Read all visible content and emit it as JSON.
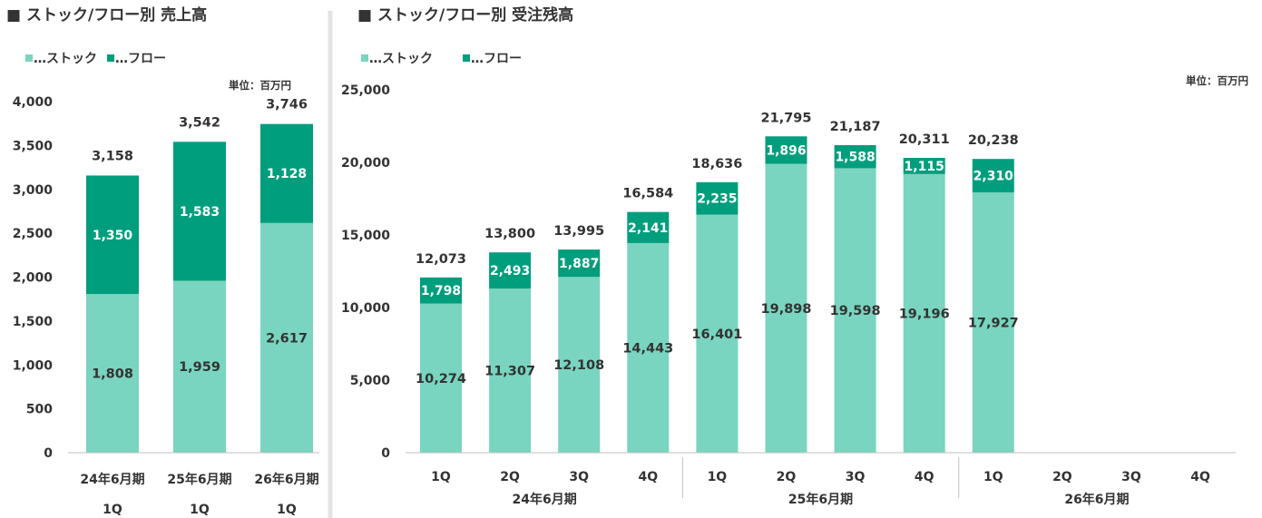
{
  "colors": {
    "stock": "#79d5bf",
    "flow": "#009e7d",
    "axis": "#bfbfbf",
    "text": "#333333",
    "divider": "#e3e3e3"
  },
  "chart_data": [
    {
      "type": "bar",
      "stacked": true,
      "title": "■ ストック/フロー別 売上高",
      "unit_label": "単位：百万円",
      "legend": [
        {
          "key": "stock",
          "label": "…ストック"
        },
        {
          "key": "flow",
          "label": "…フロー"
        }
      ],
      "categories": [
        {
          "top": "24年6月期",
          "bottom": "1Q"
        },
        {
          "top": "25年6月期",
          "bottom": "1Q"
        },
        {
          "top": "26年6月期",
          "bottom": "1Q"
        }
      ],
      "series": [
        {
          "name": "…ストック",
          "key": "stock",
          "values": [
            1808,
            1959,
            2617
          ],
          "labels": [
            "1,808",
            "1,959",
            "2,617"
          ]
        },
        {
          "name": "…フロー",
          "key": "flow",
          "values": [
            1350,
            1583,
            1128
          ],
          "labels": [
            "1,350",
            "1,583",
            "1,128"
          ]
        }
      ],
      "totals": [
        3158,
        3542,
        3746
      ],
      "total_labels": [
        "3,158",
        "3,542",
        "3,746"
      ],
      "ylim": [
        0,
        4000
      ],
      "yticks": [
        0,
        500,
        1000,
        1500,
        2000,
        2500,
        3000,
        3500,
        4000
      ],
      "ytick_labels": [
        "0",
        "500",
        "1,000",
        "1,500",
        "2,000",
        "2,500",
        "3,000",
        "3,500",
        "4,000"
      ],
      "legend_position": "top-left",
      "grid": false
    },
    {
      "type": "bar",
      "stacked": true,
      "title": "■ ストック/フロー別 受注残高",
      "unit_label": "単位：百万円",
      "legend": [
        {
          "key": "stock",
          "label": "…ストック"
        },
        {
          "key": "flow",
          "label": "…フロー"
        }
      ],
      "categories": [
        "1Q",
        "2Q",
        "3Q",
        "4Q",
        "1Q",
        "2Q",
        "3Q",
        "4Q",
        "1Q",
        "2Q",
        "3Q",
        "4Q"
      ],
      "groups": [
        {
          "label": "24年6月期",
          "count": 4
        },
        {
          "label": "25年6月期",
          "count": 4
        },
        {
          "label": "26年6月期",
          "count": 4
        }
      ],
      "series": [
        {
          "name": "…ストック",
          "key": "stock",
          "values": [
            10274,
            11307,
            12108,
            14443,
            16401,
            19898,
            19598,
            19196,
            17927,
            null,
            null,
            null
          ],
          "labels": [
            "10,274",
            "11,307",
            "12,108",
            "14,443",
            "16,401",
            "19,898",
            "19,598",
            "19,196",
            "17,927",
            "",
            "",
            ""
          ]
        },
        {
          "name": "…フロー",
          "key": "flow",
          "values": [
            1798,
            2493,
            1887,
            2141,
            2235,
            1896,
            1588,
            1115,
            2310,
            null,
            null,
            null
          ],
          "labels": [
            "1,798",
            "2,493",
            "1,887",
            "2,141",
            "2,235",
            "1,896",
            "1,588",
            "1,115",
            "2,310",
            "",
            "",
            ""
          ]
        }
      ],
      "totals": [
        12073,
        13800,
        13995,
        16584,
        18636,
        21795,
        21187,
        20311,
        20238,
        null,
        null,
        null
      ],
      "total_labels": [
        "12,073",
        "13,800",
        "13,995",
        "16,584",
        "18,636",
        "21,795",
        "21,187",
        "20,311",
        "20,238",
        "",
        "",
        ""
      ],
      "ylim": [
        0,
        25000
      ],
      "yticks": [
        0,
        5000,
        10000,
        15000,
        20000,
        25000
      ],
      "ytick_labels": [
        "0",
        "5,000",
        "10,000",
        "15,000",
        "20,000",
        "25,000"
      ],
      "legend_position": "top-left",
      "grid": false
    }
  ]
}
